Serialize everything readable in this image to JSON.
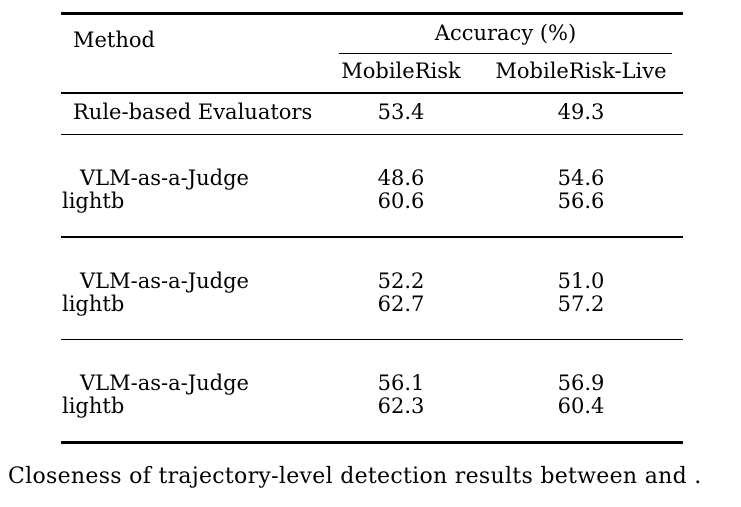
{
  "table": {
    "header": {
      "method": "Method",
      "accuracy_group": "Accuracy (%)",
      "col_mobilerisk": "MobileRisk",
      "col_mobilerisk_live": "MobileRisk-Live"
    },
    "rule_based_row": {
      "method": "Rule-based Evaluators",
      "mobilerisk": "53.4",
      "mobilerisk_live": "49.3"
    },
    "groups": [
      {
        "rows": [
          {
            "method": "VLM-as-a-Judge",
            "mobilerisk": "48.6",
            "mobilerisk_live": "54.6"
          },
          {
            "method": "lightb",
            "mobilerisk": "60.6",
            "mobilerisk_live": "56.6"
          }
        ]
      },
      {
        "rows": [
          {
            "method": "VLM-as-a-Judge",
            "mobilerisk": "52.2",
            "mobilerisk_live": "51.0"
          },
          {
            "method": "lightb",
            "mobilerisk": "62.7",
            "mobilerisk_live": "57.2"
          }
        ]
      },
      {
        "rows": [
          {
            "method": "VLM-as-a-Judge",
            "mobilerisk": "56.1",
            "mobilerisk_live": "56.9"
          },
          {
            "method": "lightb",
            "mobilerisk": "62.3",
            "mobilerisk_live": "60.4"
          }
        ]
      }
    ]
  },
  "caption": "Closeness of trajectory-level detection results between and ."
}
